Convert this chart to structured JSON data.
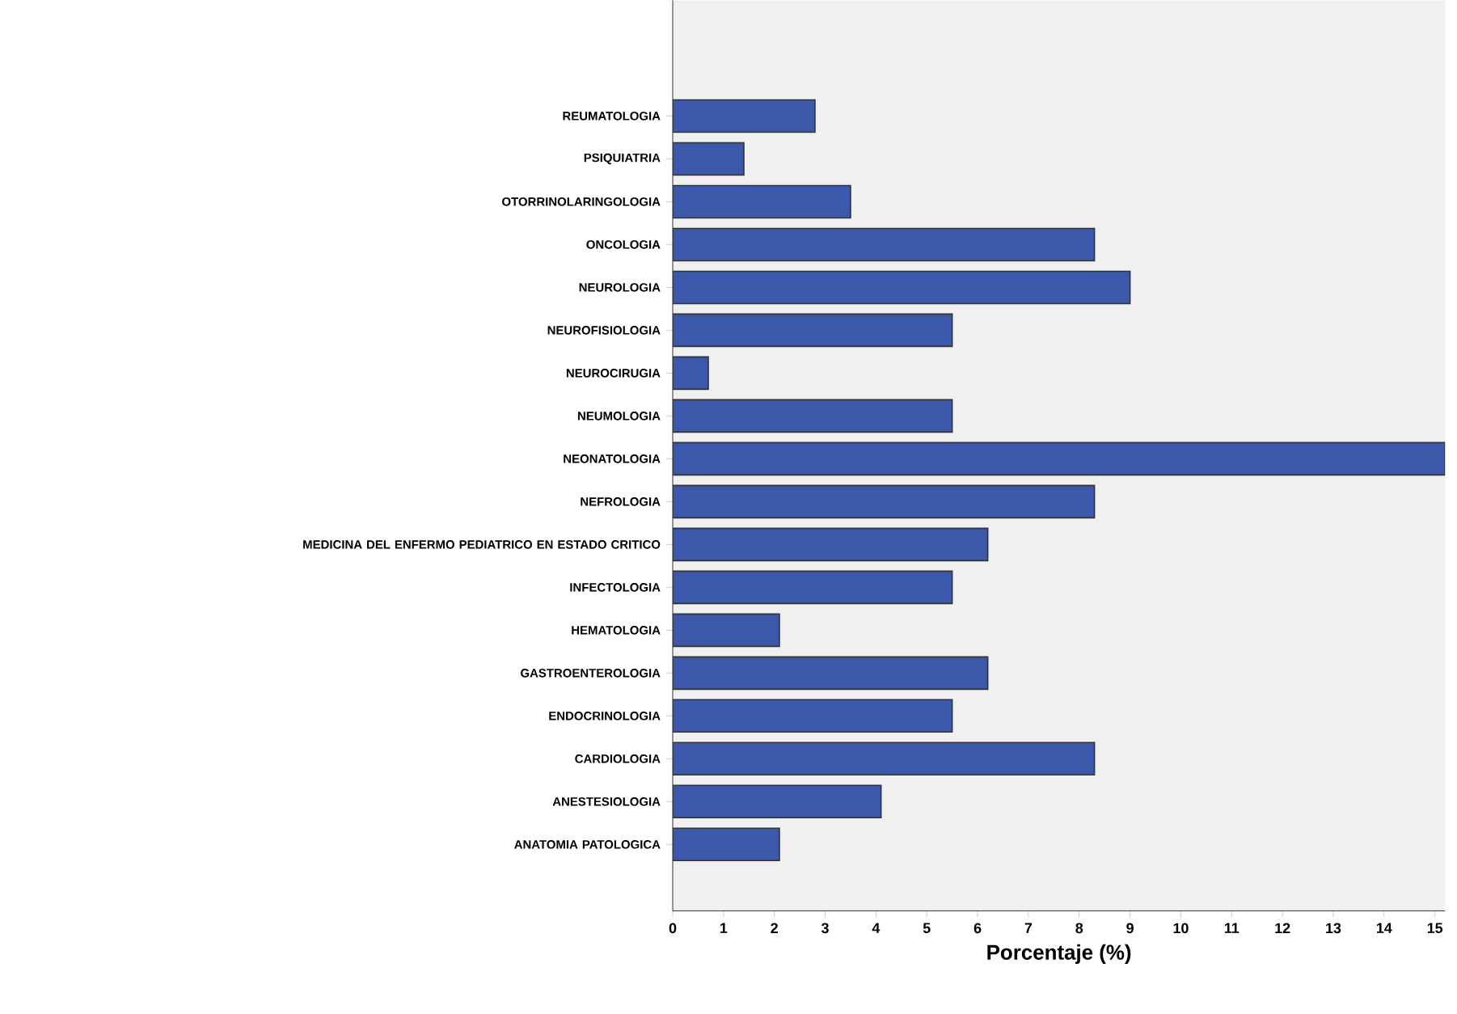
{
  "chart_data": {
    "type": "bar",
    "orientation": "horizontal",
    "xlabel": "Porcentaje (%)",
    "categories": [
      "REUMATOLOGIA",
      "PSIQUIATRIA",
      "OTORRINOLARINGOLOGIA",
      "ONCOLOGIA",
      "NEUROLOGIA",
      "NEUROFISIOLOGIA",
      "NEUROCIRUGIA",
      "NEUMOLOGIA",
      "NEONATOLOGIA",
      "NEFROLOGIA",
      "MEDICINA DEL ENFERMO PEDIATRICO EN ESTADO CRITICO",
      "INFECTOLOGIA",
      "HEMATOLOGIA",
      "GASTROENTEROLOGIA",
      "ENDOCRINOLOGIA",
      "CARDIOLOGIA",
      "ANESTESIOLOGIA",
      "ANATOMIA PATOLOGICA"
    ],
    "values": [
      2.8,
      1.4,
      3.5,
      8.3,
      9.0,
      5.5,
      0.7,
      5.5,
      15.2,
      8.3,
      6.2,
      5.5,
      2.1,
      6.2,
      5.5,
      8.3,
      4.1,
      2.1
    ],
    "color": "#3c58ab",
    "xlim": [
      0,
      15.2
    ],
    "xticks": [
      0,
      1,
      2,
      3,
      4,
      5,
      6,
      7,
      8,
      9,
      10,
      11,
      12,
      13,
      14,
      15
    ],
    "grid": false
  }
}
